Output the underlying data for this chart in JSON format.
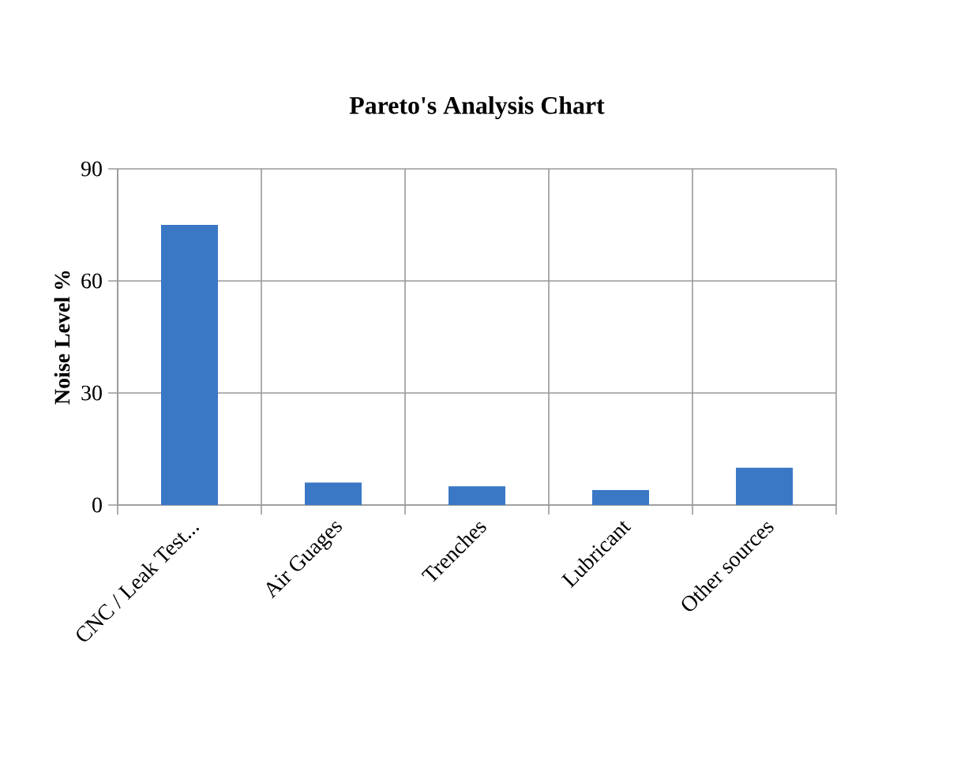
{
  "chart_data": {
    "type": "bar",
    "title": "Pareto's Analysis Chart",
    "ylabel": "Noise Level %",
    "categories": [
      "CNC / Leak Test...",
      "Air Guages",
      "Trenches",
      "Lubricant",
      "Other sources"
    ],
    "values": [
      75,
      6,
      5,
      4,
      10
    ],
    "color": "#3a78c6",
    "ylim": [
      0,
      90
    ],
    "yticks": [
      0,
      30,
      60,
      90
    ],
    "grid": true
  }
}
